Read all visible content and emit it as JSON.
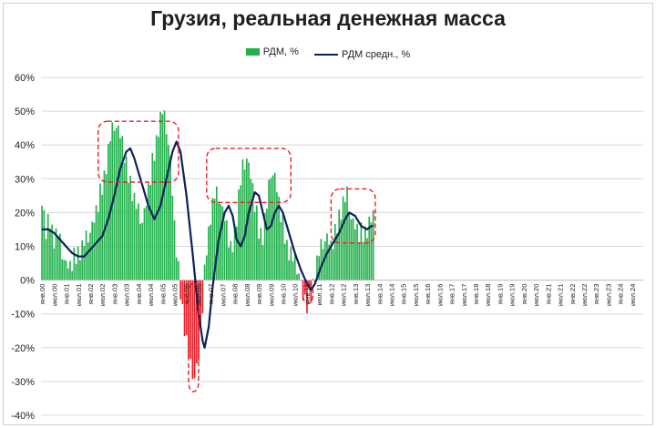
{
  "chart_data": {
    "type": "bar",
    "title": "Грузия, реальная денежная масса",
    "series": [
      {
        "name": "РДМ, %",
        "type": "bar",
        "color_positive": "#22b14c",
        "color_negative": "#e8202a",
        "anchors": [
          [
            0,
            22
          ],
          [
            2,
            14
          ],
          [
            4,
            18
          ],
          [
            6,
            13
          ],
          [
            8,
            14
          ],
          [
            10,
            8
          ],
          [
            12,
            4
          ],
          [
            14,
            3
          ],
          [
            16,
            6
          ],
          [
            18,
            9
          ],
          [
            20,
            10
          ],
          [
            22,
            12
          ],
          [
            24,
            14
          ],
          [
            26,
            17
          ],
          [
            28,
            22
          ],
          [
            30,
            28
          ],
          [
            32,
            35
          ],
          [
            34,
            42
          ],
          [
            36,
            46
          ],
          [
            38,
            44
          ],
          [
            40,
            40
          ],
          [
            42,
            33
          ],
          [
            44,
            30
          ],
          [
            46,
            24
          ],
          [
            48,
            20
          ],
          [
            50,
            17
          ],
          [
            52,
            22
          ],
          [
            54,
            30
          ],
          [
            56,
            38
          ],
          [
            58,
            46
          ],
          [
            60,
            50
          ],
          [
            62,
            45
          ],
          [
            64,
            35
          ],
          [
            66,
            15
          ],
          [
            68,
            2
          ],
          [
            70,
            -8
          ],
          [
            72,
            -18
          ],
          [
            74,
            -26
          ],
          [
            76,
            -29
          ],
          [
            78,
            -24
          ],
          [
            80,
            -8
          ],
          [
            82,
            10
          ],
          [
            84,
            20
          ],
          [
            86,
            25
          ],
          [
            88,
            25
          ],
          [
            90,
            20
          ],
          [
            92,
            15
          ],
          [
            94,
            8
          ],
          [
            96,
            14
          ],
          [
            98,
            25
          ],
          [
            100,
            33
          ],
          [
            102,
            36
          ],
          [
            104,
            30
          ],
          [
            106,
            22
          ],
          [
            108,
            15
          ],
          [
            110,
            14
          ],
          [
            112,
            22
          ],
          [
            114,
            32
          ],
          [
            116,
            30
          ],
          [
            118,
            22
          ],
          [
            120,
            16
          ],
          [
            122,
            11
          ],
          [
            124,
            8
          ],
          [
            126,
            5
          ],
          [
            128,
            2
          ],
          [
            130,
            -6
          ],
          [
            132,
            -8
          ],
          [
            134,
            -4
          ],
          [
            136,
            3
          ],
          [
            138,
            8
          ],
          [
            140,
            11
          ],
          [
            142,
            12
          ],
          [
            144,
            9
          ],
          [
            146,
            13
          ],
          [
            148,
            20
          ],
          [
            150,
            23
          ],
          [
            152,
            25
          ],
          [
            154,
            18
          ],
          [
            156,
            15
          ],
          [
            158,
            13
          ],
          [
            160,
            14
          ],
          [
            162,
            16
          ],
          [
            164,
            18
          ]
        ]
      },
      {
        "name": "РДМ средн., %",
        "type": "line",
        "color": "#0f1f5c",
        "anchors": [
          [
            0,
            15
          ],
          [
            3,
            15
          ],
          [
            6,
            14
          ],
          [
            9,
            12
          ],
          [
            12,
            10
          ],
          [
            15,
            8
          ],
          [
            18,
            7
          ],
          [
            21,
            7
          ],
          [
            24,
            9
          ],
          [
            27,
            11
          ],
          [
            30,
            13
          ],
          [
            33,
            18
          ],
          [
            36,
            25
          ],
          [
            39,
            33
          ],
          [
            42,
            38
          ],
          [
            44,
            39
          ],
          [
            46,
            36
          ],
          [
            48,
            32
          ],
          [
            50,
            28
          ],
          [
            53,
            22
          ],
          [
            56,
            18
          ],
          [
            59,
            22
          ],
          [
            62,
            30
          ],
          [
            65,
            38
          ],
          [
            67,
            41
          ],
          [
            69,
            38
          ],
          [
            72,
            25
          ],
          [
            75,
            8
          ],
          [
            78,
            -10
          ],
          [
            80,
            -18
          ],
          [
            81,
            -20
          ],
          [
            83,
            -14
          ],
          [
            85,
            -2
          ],
          [
            88,
            12
          ],
          [
            91,
            20
          ],
          [
            93,
            22
          ],
          [
            95,
            19
          ],
          [
            97,
            12
          ],
          [
            99,
            10
          ],
          [
            101,
            13
          ],
          [
            103,
            20
          ],
          [
            106,
            26
          ],
          [
            108,
            25
          ],
          [
            110,
            20
          ],
          [
            112,
            15
          ],
          [
            114,
            16
          ],
          [
            116,
            20
          ],
          [
            118,
            22
          ],
          [
            120,
            20
          ],
          [
            123,
            14
          ],
          [
            126,
            8
          ],
          [
            129,
            3
          ],
          [
            132,
            -1
          ],
          [
            134,
            -3
          ],
          [
            136,
            -1
          ],
          [
            139,
            4
          ],
          [
            142,
            8
          ],
          [
            145,
            11
          ],
          [
            148,
            14
          ],
          [
            151,
            18
          ],
          [
            153,
            20
          ],
          [
            156,
            19
          ],
          [
            159,
            16
          ],
          [
            162,
            15
          ],
          [
            164,
            16
          ]
        ]
      }
    ],
    "ylim": [
      -40,
      60
    ],
    "y_ticks": [
      "-40%",
      "-30%",
      "-20%",
      "-10%",
      "0%",
      "10%",
      "20%",
      "30%",
      "40%",
      "50%",
      "60%"
    ],
    "x_ticks": [
      "янв.00",
      "июл.00",
      "янв.01",
      "июл.01",
      "янв.02",
      "июл.02",
      "янв.03",
      "июл.03",
      "янв.04",
      "июл.04",
      "янв.05",
      "июл.05",
      "янв.06",
      "июл.06",
      "янв.07",
      "июл.07",
      "янв.08",
      "июл.08",
      "янв.09",
      "июл.09",
      "янв.10",
      "июл.10",
      "янв.11",
      "июл.11",
      "янв.12",
      "июл.12",
      "янв.13",
      "июл.13",
      "янв.14",
      "июл.14",
      "янв.15",
      "июл.15",
      "янв.16",
      "июл.16",
      "янв.17",
      "июл.17",
      "янв.18",
      "июл.18",
      "янв.19",
      "июл.19",
      "янв.20",
      "июл.20",
      "янв.21",
      "июл.21",
      "янв.22",
      "июл.22",
      "янв.23",
      "июл.23",
      "янв.24",
      "июл.24"
    ],
    "data_months": 166,
    "total_months": 300,
    "highlight_color": "#e8202a",
    "grid": true,
    "legend_position": "top"
  }
}
